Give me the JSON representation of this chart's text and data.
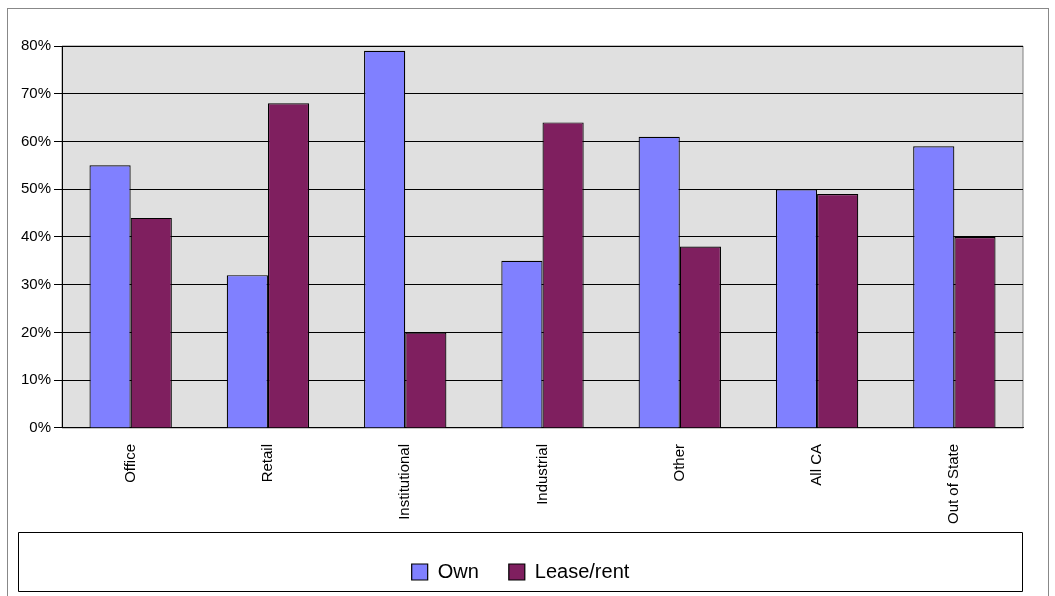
{
  "chart_data": {
    "type": "bar",
    "categories": [
      "Office",
      "Retail",
      "Institutional",
      "Industrial",
      "Other",
      "All CA",
      "Out of State"
    ],
    "series": [
      {
        "name": "Own",
        "color": "#8080ff",
        "values": [
          55,
          32,
          79,
          35,
          61,
          50,
          59
        ]
      },
      {
        "name": "Lease/rent",
        "color": "#7f1f5f",
        "values": [
          44,
          68,
          20,
          64,
          38,
          49,
          40
        ]
      }
    ],
    "ylim": [
      0,
      80
    ],
    "yticks": [
      {
        "value": 0,
        "label": "0%"
      },
      {
        "value": 10,
        "label": "10%"
      },
      {
        "value": 20,
        "label": "20%"
      },
      {
        "value": 30,
        "label": "30%"
      },
      {
        "value": 40,
        "label": "40%"
      },
      {
        "value": 50,
        "label": "50%"
      },
      {
        "value": 60,
        "label": "60%"
      },
      {
        "value": 70,
        "label": "70%"
      },
      {
        "value": 80,
        "label": "80%"
      }
    ],
    "grid": "y",
    "legend": "bottom"
  }
}
